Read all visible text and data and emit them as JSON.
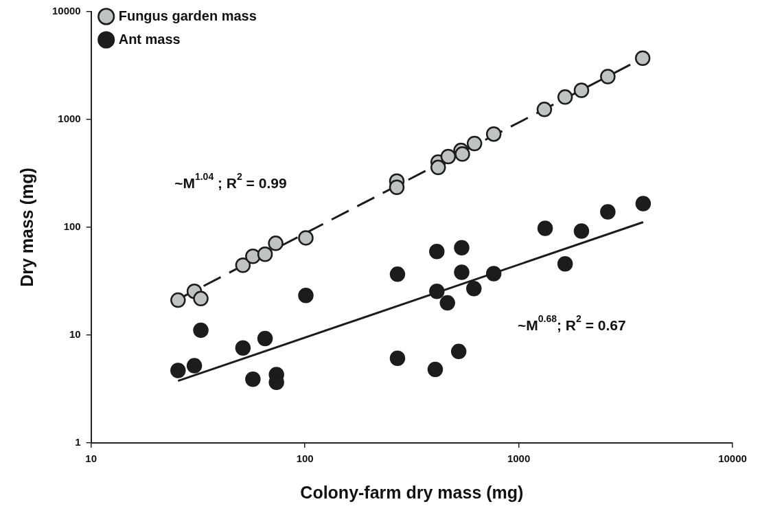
{
  "chart_data": {
    "type": "scatter",
    "xlabel": "Colony-farm dry mass (mg)",
    "ylabel": "Dry mass (mg)",
    "log": "xy",
    "grid": false,
    "legend": "top left",
    "marker": "circle",
    "xlim": [
      10,
      10000
    ],
    "ylim": [
      1,
      10000
    ],
    "xticks": [
      10,
      100,
      1000,
      10000
    ],
    "yticks": [
      1,
      10,
      100,
      1000,
      10000
    ],
    "series": [
      {
        "name": "Fungus garden mass",
        "color": "#c0c4c0",
        "x": [
          25.5,
          30.4,
          32.6,
          51.3,
          57.1,
          65.1,
          73,
          101,
          269,
          269,
          420,
          420,
          468,
          537,
          545,
          621,
          764,
          1318,
          1648,
          1965,
          2610,
          3800
        ],
        "values": [
          21.1,
          25.5,
          21.8,
          44.5,
          53.8,
          56.2,
          71,
          79.8,
          268,
          235,
          403,
          359,
          453,
          516,
          478,
          598,
          733,
          1240,
          1614,
          1866,
          2500,
          3700
        ]
      },
      {
        "name": "Ant mass",
        "color": "#1c1c1c",
        "x": [
          25.5,
          30.4,
          32.6,
          51.3,
          57.1,
          65.1,
          73.6,
          73.6,
          101,
          271,
          271,
          407,
          414,
          414,
          464,
          524,
          541,
          541,
          617,
          764,
          1329,
          1648,
          1965,
          2610,
          3820
        ],
        "values": [
          4.7,
          5.2,
          11.1,
          7.6,
          3.9,
          9.3,
          4.3,
          3.65,
          23.3,
          36.7,
          6.1,
          4.8,
          59.6,
          25.5,
          19.9,
          7.05,
          64.6,
          38.3,
          27,
          37.2,
          97.8,
          45.8,
          92.3,
          139,
          166
        ]
      },
      {
        "type": "line",
        "color": "#1c1c1c",
        "line_style": "dashed",
        "marker": "none",
        "x": [
          25.5,
          3800
        ],
        "values": [
          21.5,
          3700
        ]
      },
      {
        "type": "line",
        "color": "#1c1c1c",
        "line_style": "solid",
        "marker": "none",
        "x": [
          25.5,
          3820
        ],
        "values": [
          3.76,
          111.6
        ]
      }
    ],
    "annotations": [
      "~M$^{1.04}$ ; R$^{2}$ = 0.99",
      "~M$^{0.68}$; R$^{2}$ = 0.67"
    ]
  }
}
